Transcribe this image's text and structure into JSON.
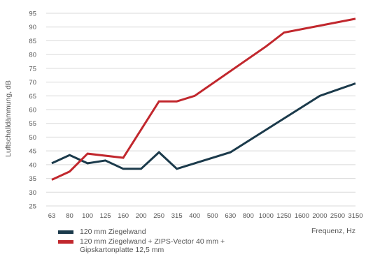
{
  "chart_data": {
    "type": "line",
    "ylabel": "Luftschalldämmung, dB",
    "xlabel": "Frequenz, Hz",
    "categories": [
      "63",
      "80",
      "100",
      "125",
      "160",
      "200",
      "250",
      "315",
      "400",
      "500",
      "630",
      "800",
      "1000",
      "1250",
      "1600",
      "2000",
      "2500",
      "3150"
    ],
    "ylim": [
      25,
      95
    ],
    "yticks": [
      25,
      30,
      35,
      40,
      45,
      50,
      55,
      60,
      65,
      70,
      75,
      80,
      85,
      90,
      95
    ],
    "grid": "horizontal",
    "legend_position": "bottom-left",
    "series": [
      {
        "name": "120 mm Ziegelwand",
        "color": "#1b3a4b",
        "points": [
          {
            "x": "63",
            "y": 40.5
          },
          {
            "x": "80",
            "y": 43.5
          },
          {
            "x": "100",
            "y": 40.5
          },
          {
            "x": "125",
            "y": 41.5
          },
          {
            "x": "160",
            "y": 38.5
          },
          {
            "x": "200",
            "y": 38.5
          },
          {
            "x": "250",
            "y": 44.5
          },
          {
            "x": "315",
            "y": 38.5
          },
          {
            "x": "630",
            "y": 44.5
          },
          {
            "x": "2000",
            "y": 65
          },
          {
            "x": "3150",
            "y": 69.5
          }
        ]
      },
      {
        "name": "120 mm Ziegelwand + ZIPS-Vector 40 mm + Gipskartonplatte 12,5 mm",
        "color": "#c1272d",
        "points": [
          {
            "x": "63",
            "y": 34.5
          },
          {
            "x": "80",
            "y": 37.5
          },
          {
            "x": "100",
            "y": 44
          },
          {
            "x": "160",
            "y": 42.5
          },
          {
            "x": "250",
            "y": 63
          },
          {
            "x": "315",
            "y": 63
          },
          {
            "x": "400",
            "y": 65
          },
          {
            "x": "1000",
            "y": 83
          },
          {
            "x": "1250",
            "y": 88
          },
          {
            "x": "3150",
            "y": 93
          }
        ]
      }
    ]
  }
}
